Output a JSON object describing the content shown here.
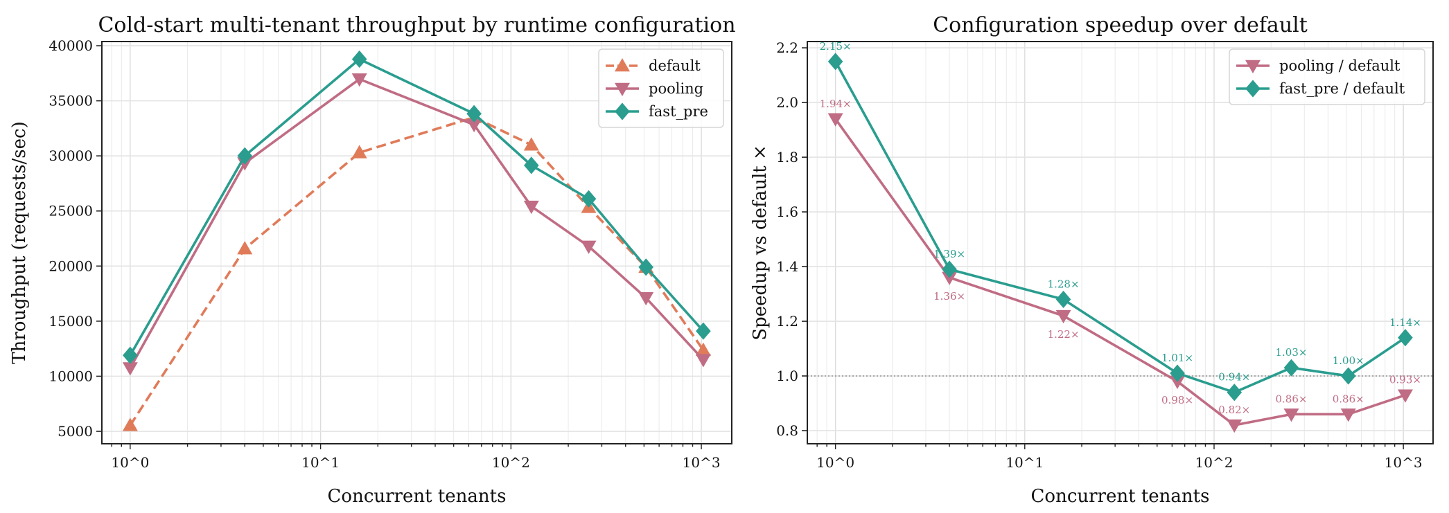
{
  "chart_data": [
    {
      "type": "line",
      "title": "Cold-start multi-tenant throughput by runtime configuration",
      "xlabel": "Concurrent tenants",
      "ylabel": "Throughput (requests/sec)",
      "xscale": "log",
      "xlim": [
        0.71,
        1445
      ],
      "ylim": [
        3870,
        40380
      ],
      "xticks": [
        1,
        10,
        100,
        1000
      ],
      "xtick_labels": [
        "10^0",
        "10^1",
        "10^2",
        "10^3"
      ],
      "yticks": [
        5000,
        10000,
        15000,
        20000,
        25000,
        30000,
        35000,
        40000
      ],
      "ytick_labels": [
        "5000",
        "10000",
        "15000",
        "20000",
        "25000",
        "30000",
        "35000",
        "40000"
      ],
      "grid": true,
      "legend_placement": "top-right",
      "x": [
        1,
        4,
        16,
        64,
        128,
        256,
        512,
        1024
      ],
      "series": [
        {
          "name": "default",
          "color": "#E07B5A",
          "marker": "triangle-up",
          "linestyle": "dashed",
          "values": [
            5540,
            21580,
            30300,
            33500,
            31000,
            25340,
            19900,
            12370
          ]
        },
        {
          "name": "pooling",
          "color": "#C06C84",
          "marker": "triangle-down",
          "linestyle": "solid",
          "values": [
            10750,
            29350,
            36970,
            32830,
            25420,
            21790,
            17110,
            11500
          ]
        },
        {
          "name": "fast_pre",
          "color": "#2A9D8F",
          "marker": "diamond",
          "linestyle": "solid",
          "values": [
            11900,
            30000,
            38780,
            33830,
            29140,
            26100,
            19900,
            14100
          ]
        }
      ]
    },
    {
      "type": "line",
      "title": "Configuration speedup over default",
      "xlabel": "Concurrent tenants",
      "ylabel": "Speedup vs default ×",
      "xscale": "log",
      "xlim": [
        0.71,
        1435
      ],
      "ylim": [
        0.752,
        2.223
      ],
      "xticks": [
        1,
        10,
        100,
        1000
      ],
      "xtick_labels": [
        "10^0",
        "10^1",
        "10^2",
        "10^3"
      ],
      "yticks": [
        0.8,
        1.0,
        1.2,
        1.4,
        1.6,
        1.8,
        2.0,
        2.2
      ],
      "ytick_labels": [
        "0.8",
        "1.0",
        "1.2",
        "1.4",
        "1.6",
        "1.8",
        "2.0",
        "2.2"
      ],
      "grid": true,
      "legend_placement": "top-right",
      "reference_line": {
        "y": 1.0,
        "style": "dotted",
        "color": "#888888"
      },
      "x": [
        1,
        4,
        16,
        64,
        128,
        256,
        512,
        1024
      ],
      "series": [
        {
          "name": "pooling / default",
          "color": "#C06C84",
          "marker": "triangle-down",
          "values": [
            1.94,
            1.36,
            1.22,
            0.98,
            0.82,
            0.86,
            0.86,
            0.93
          ],
          "labels": [
            "1.94×",
            "1.36×",
            "1.22×",
            "0.98×",
            "0.82×",
            "0.86×",
            "0.86×",
            "0.93×"
          ]
        },
        {
          "name": "fast_pre / default",
          "color": "#2A9D8F",
          "marker": "diamond",
          "values": [
            2.15,
            1.39,
            1.28,
            1.01,
            0.94,
            1.03,
            1.0,
            1.14
          ],
          "labels": [
            "2.15×",
            "1.39×",
            "1.28×",
            "1.01×",
            "0.94×",
            "1.03×",
            "1.00×",
            "1.14×"
          ]
        }
      ]
    }
  ]
}
